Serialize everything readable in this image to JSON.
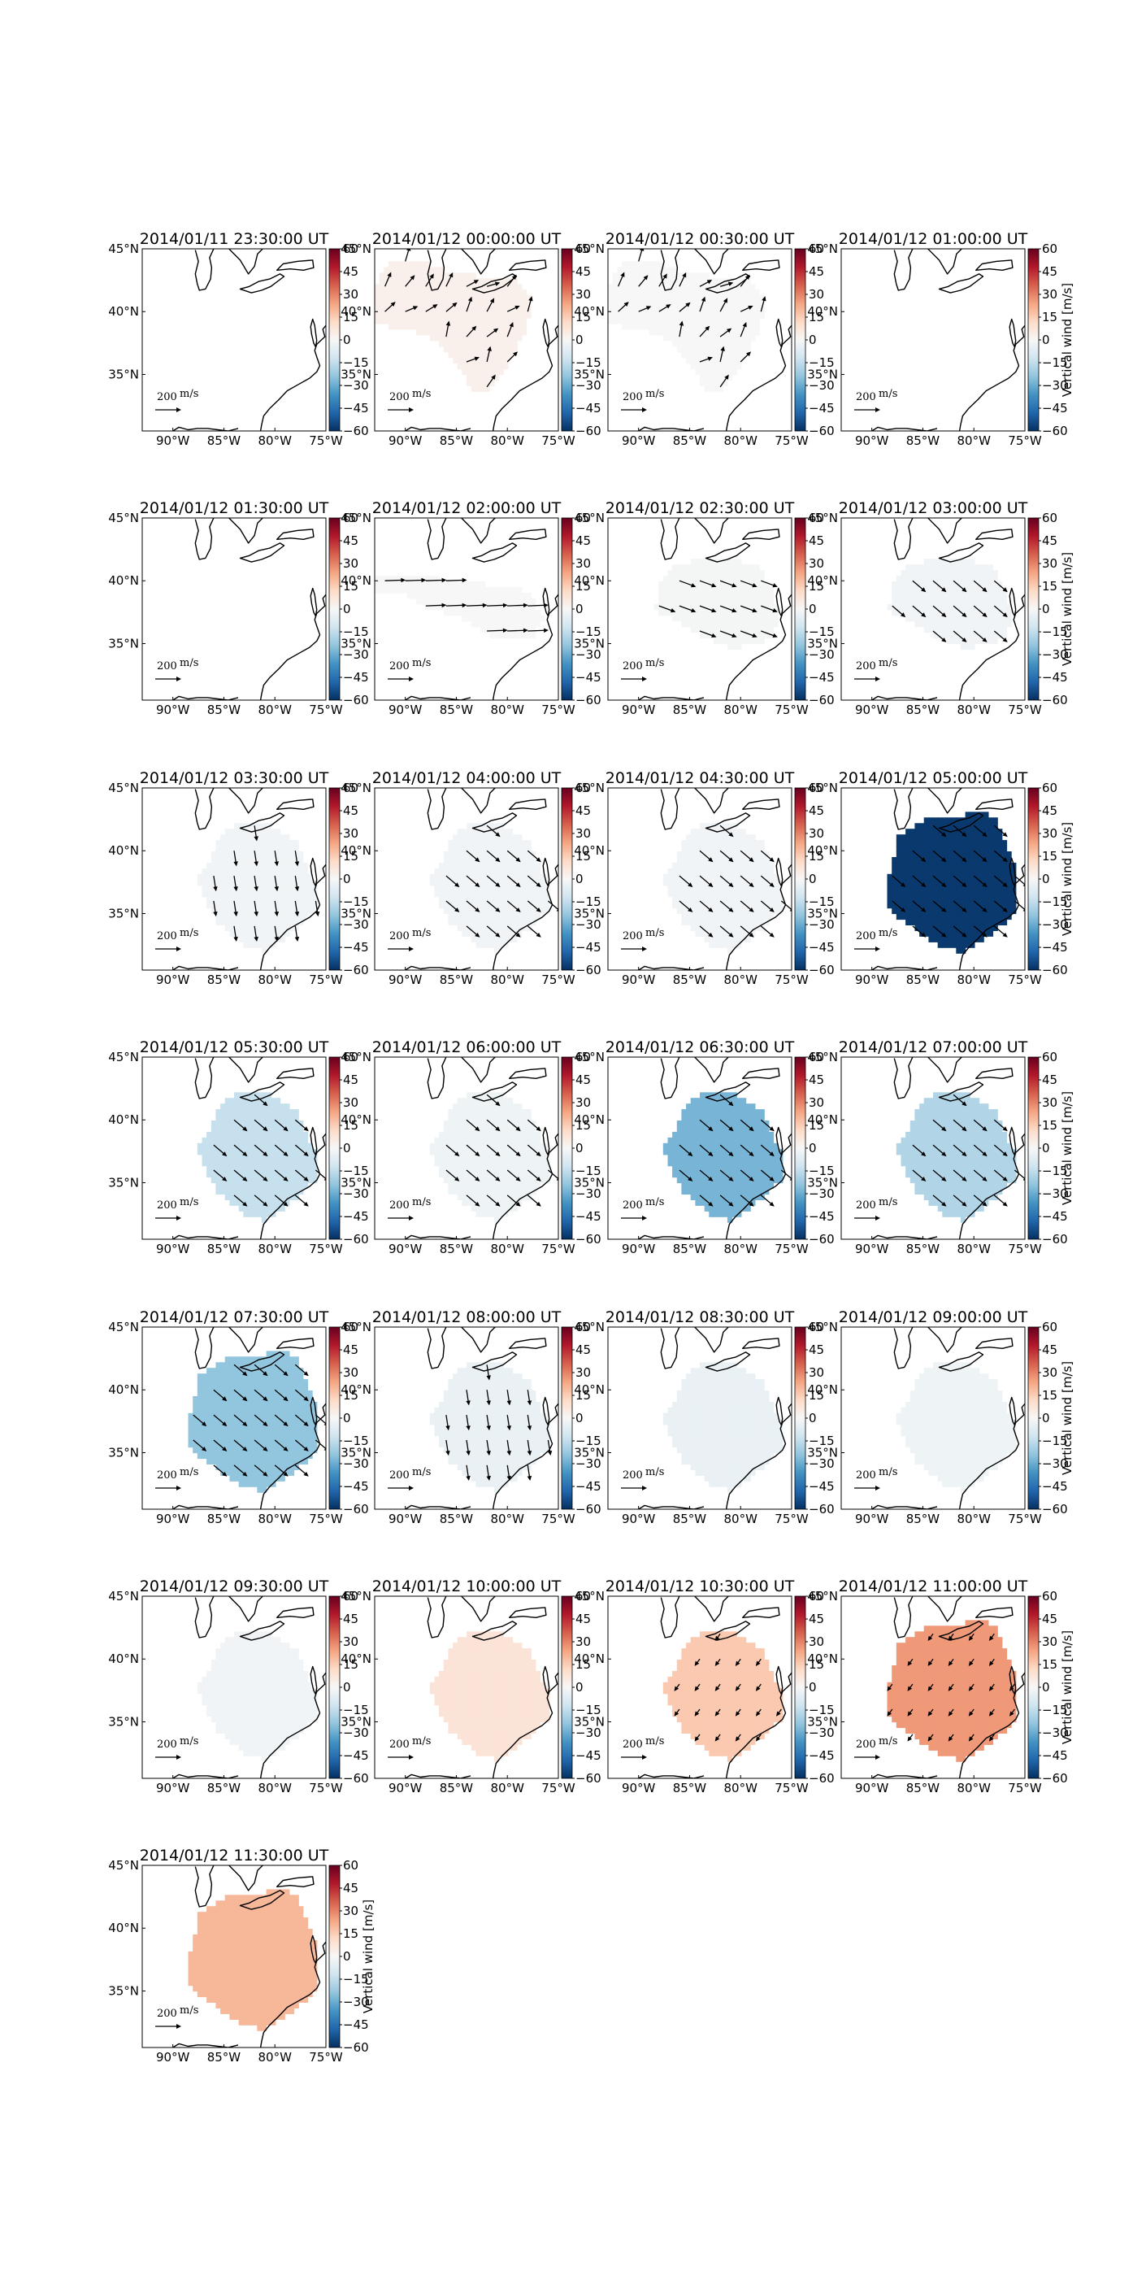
{
  "chart_data": {
    "type": "heatmap",
    "layout": {
      "rows": 7,
      "cols": 4
    },
    "quantity": "vertical wind with horizontal wind vectors",
    "axes": {
      "xlim": [
        -93,
        -75
      ],
      "ylim": [
        30.5,
        45
      ],
      "xticks": [
        -90,
        -85,
        -80,
        -75
      ],
      "xtick_labels": [
        "90°W",
        "85°W",
        "80°W",
        "75°W"
      ],
      "yticks": [
        35,
        40,
        45
      ],
      "ytick_labels": [
        "35°N",
        "40°N",
        "45°N"
      ]
    },
    "colorbar": {
      "label": "Vertical wind [m/s]",
      "range": [
        -60,
        60
      ],
      "ticks": [
        60,
        45,
        30,
        15,
        0,
        -15,
        -30,
        -45,
        -60
      ],
      "tick_labels": [
        "60",
        "45",
        "30",
        "15",
        "0",
        "−15",
        "−30",
        "−45",
        "−60"
      ],
      "colormap": "RdBu_r",
      "colors": {
        "low": "#053061",
        "mid": "#f7f7f7",
        "high": "#67001f"
      }
    },
    "quiver_key": {
      "value": "200",
      "unit": "m/s"
    },
    "panels": [
      {
        "title": "2014/01/11 23:30:00 UT",
        "region": "none",
        "value": 0,
        "vectors": "none"
      },
      {
        "title": "2014/01/12 00:00:00 UT",
        "region": "north",
        "value": 3,
        "vectors": "ne_mixed"
      },
      {
        "title": "2014/01/12 00:30:00 UT",
        "region": "north",
        "value": 0,
        "vectors": "ne_mixed"
      },
      {
        "title": "2014/01/12 01:00:00 UT",
        "region": "none",
        "value": 0,
        "vectors": "none"
      },
      {
        "title": "2014/01/12 01:30:00 UT",
        "region": "none",
        "value": 0,
        "vectors": "none"
      },
      {
        "title": "2014/01/12 02:00:00 UT",
        "region": "wide",
        "value": 0,
        "vectors": "east"
      },
      {
        "title": "2014/01/12 02:30:00 UT",
        "region": "mid",
        "value": -1,
        "vectors": "ese"
      },
      {
        "title": "2014/01/12 03:00:00 UT",
        "region": "mid",
        "value": -2,
        "vectors": "se"
      },
      {
        "title": "2014/01/12 03:30:00 UT",
        "region": "south",
        "value": -2,
        "vectors": "south"
      },
      {
        "title": "2014/01/12 04:00:00 UT",
        "region": "south",
        "value": -2,
        "vectors": "se"
      },
      {
        "title": "2014/01/12 04:30:00 UT",
        "region": "south",
        "value": -2,
        "vectors": "se"
      },
      {
        "title": "2014/01/12 05:00:00 UT",
        "region": "big",
        "value": -58,
        "vectors": "se"
      },
      {
        "title": "2014/01/12 05:30:00 UT",
        "region": "south",
        "value": -14,
        "vectors": "se"
      },
      {
        "title": "2014/01/12 06:00:00 UT",
        "region": "south",
        "value": -3,
        "vectors": "se"
      },
      {
        "title": "2014/01/12 06:30:00 UT",
        "region": "south",
        "value": -28,
        "vectors": "se"
      },
      {
        "title": "2014/01/12 07:00:00 UT",
        "region": "south",
        "value": -18,
        "vectors": "se"
      },
      {
        "title": "2014/01/12 07:30:00 UT",
        "region": "big",
        "value": -24,
        "vectors": "se"
      },
      {
        "title": "2014/01/12 08:00:00 UT",
        "region": "south",
        "value": -4,
        "vectors": "south"
      },
      {
        "title": "2014/01/12 08:30:00 UT",
        "region": "south",
        "value": -4,
        "vectors": "dots"
      },
      {
        "title": "2014/01/12 09:00:00 UT",
        "region": "south",
        "value": -3,
        "vectors": "dots"
      },
      {
        "title": "2014/01/12 09:30:00 UT",
        "region": "south",
        "value": -2,
        "vectors": "dots"
      },
      {
        "title": "2014/01/12 10:00:00 UT",
        "region": "south",
        "value": 8,
        "vectors": "dots"
      },
      {
        "title": "2014/01/12 10:30:00 UT",
        "region": "south",
        "value": 16,
        "vectors": "sw"
      },
      {
        "title": "2014/01/12 11:00:00 UT",
        "region": "big",
        "value": 26,
        "vectors": "sw"
      },
      {
        "title": "2014/01/12 11:30:00 UT",
        "region": "big",
        "value": 20,
        "vectors": "dots"
      }
    ]
  }
}
